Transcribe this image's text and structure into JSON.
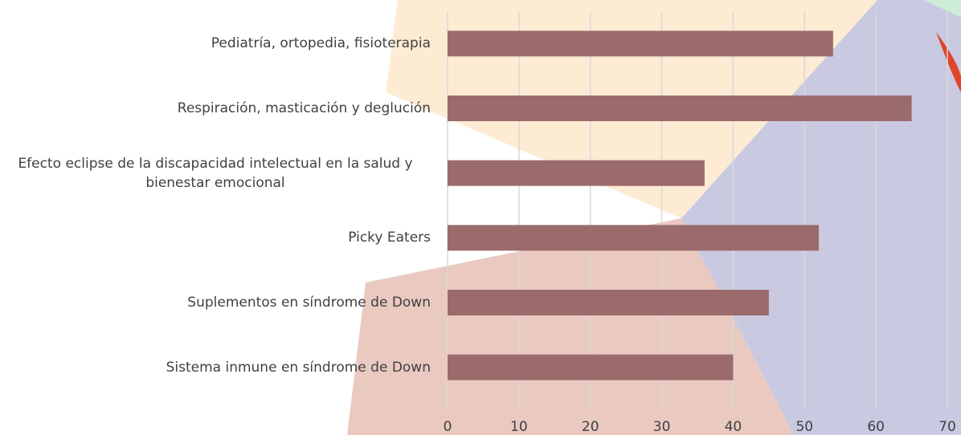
{
  "chart_data": {
    "type": "bar",
    "orientation": "horizontal",
    "categories": [
      "Pediatría, ortopedia, fisioterapia",
      "Respiración, masticación y deglución",
      "Efecto eclipse de la discapacidad intelectual en la salud y bienestar emocional",
      "Picky Eaters",
      "Suplementos en síndrome de Down",
      "Sistema inmune en síndrome de Down"
    ],
    "values": [
      54,
      65,
      36,
      52,
      45,
      40
    ],
    "color": "#9b6b6b",
    "xlim": [
      0,
      70
    ],
    "xticks": [
      0,
      10,
      20,
      30,
      40,
      50,
      60,
      70
    ],
    "grid": true
  }
}
